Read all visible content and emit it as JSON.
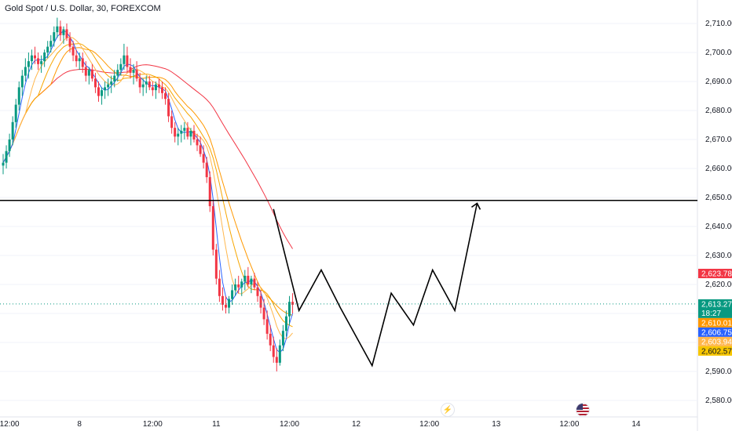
{
  "header": {
    "symbol_title": "Gold Spot / U.S. Dollar, 30, FOREXCOM"
  },
  "chart_data": {
    "type": "candlestick",
    "title": "Gold Spot / U.S. Dollar, 30, FOREXCOM",
    "y_ticks": [
      "2,710.00",
      "2,700.00",
      "2,690.00",
      "2,680.00",
      "2,670.00",
      "2,660.00",
      "2,650.00",
      "2,640.00",
      "2,630.00",
      "2,620.00",
      "2,610.00",
      "2,600.00",
      "2,590.00",
      "2,580.00"
    ],
    "y_tick_values": [
      2710,
      2700,
      2690,
      2680,
      2670,
      2660,
      2650,
      2640,
      2630,
      2620,
      2610,
      2600,
      2590,
      2580
    ],
    "x_ticks": [
      {
        "label": "12:00",
        "t": 2
      },
      {
        "label": "8",
        "t": 24
      },
      {
        "label": "12:00",
        "t": 47
      },
      {
        "label": "11",
        "t": 67
      },
      {
        "label": "12:00",
        "t": 90
      },
      {
        "label": "12",
        "t": 111
      },
      {
        "label": "12:00",
        "t": 134
      },
      {
        "label": "13",
        "t": 155
      },
      {
        "label": "12:00",
        "t": 178
      },
      {
        "label": "14",
        "t": 199
      }
    ],
    "ylim": [
      2578,
      2713
    ],
    "xlim": [
      -2,
      210
    ],
    "candles": [
      [
        2661,
        2665,
        2658,
        2662
      ],
      [
        2662,
        2668,
        2660,
        2666
      ],
      [
        2666,
        2672,
        2664,
        2670
      ],
      [
        2670,
        2678,
        2668,
        2676
      ],
      [
        2676,
        2684,
        2674,
        2682
      ],
      [
        2682,
        2690,
        2680,
        2688
      ],
      [
        2688,
        2694,
        2685,
        2692
      ],
      [
        2692,
        2698,
        2690,
        2695
      ],
      [
        2695,
        2700,
        2691,
        2697
      ],
      [
        2697,
        2701,
        2694,
        2699
      ],
      [
        2699,
        2702,
        2696,
        2698
      ],
      [
        2698,
        2700,
        2694,
        2696
      ],
      [
        2696,
        2699,
        2693,
        2697
      ],
      [
        2697,
        2701,
        2695,
        2700
      ],
      [
        2700,
        2704,
        2698,
        2702
      ],
      [
        2702,
        2706,
        2700,
        2704
      ],
      [
        2704,
        2709,
        2702,
        2707
      ],
      [
        2707,
        2712,
        2705,
        2709
      ],
      [
        2709,
        2711,
        2704,
        2706
      ],
      [
        2706,
        2709,
        2703,
        2708
      ],
      [
        2708,
        2710,
        2704,
        2705
      ],
      [
        2705,
        2707,
        2700,
        2702
      ],
      [
        2702,
        2704,
        2697,
        2699
      ],
      [
        2699,
        2701,
        2695,
        2697
      ],
      [
        2697,
        2700,
        2694,
        2698
      ],
      [
        2698,
        2700,
        2693,
        2695
      ],
      [
        2695,
        2697,
        2690,
        2692
      ],
      [
        2692,
        2695,
        2689,
        2694
      ],
      [
        2694,
        2696,
        2690,
        2691
      ],
      [
        2691,
        2693,
        2686,
        2688
      ],
      [
        2688,
        2690,
        2683,
        2685
      ],
      [
        2685,
        2688,
        2682,
        2687
      ],
      [
        2687,
        2690,
        2684,
        2688
      ],
      [
        2688,
        2691,
        2685,
        2689
      ],
      [
        2689,
        2692,
        2686,
        2690
      ],
      [
        2690,
        2694,
        2688,
        2692
      ],
      [
        2692,
        2696,
        2690,
        2694
      ],
      [
        2694,
        2698,
        2692,
        2696
      ],
      [
        2696,
        2703,
        2694,
        2699
      ],
      [
        2699,
        2702,
        2693,
        2695
      ],
      [
        2695,
        2698,
        2691,
        2693
      ],
      [
        2693,
        2696,
        2689,
        2694
      ],
      [
        2694,
        2697,
        2690,
        2691
      ],
      [
        2691,
        2693,
        2686,
        2688
      ],
      [
        2688,
        2691,
        2685,
        2689
      ],
      [
        2689,
        2692,
        2686,
        2690
      ],
      [
        2690,
        2692,
        2687,
        2688
      ],
      [
        2688,
        2690,
        2685,
        2687
      ],
      [
        2687,
        2690,
        2684,
        2689
      ],
      [
        2689,
        2691,
        2686,
        2688
      ],
      [
        2688,
        2690,
        2684,
        2686
      ],
      [
        2686,
        2688,
        2682,
        2684
      ],
      [
        2684,
        2686,
        2676,
        2678
      ],
      [
        2678,
        2680,
        2672,
        2674
      ],
      [
        2674,
        2676,
        2669,
        2671
      ],
      [
        2671,
        2674,
        2668,
        2672
      ],
      [
        2672,
        2675,
        2669,
        2673
      ],
      [
        2673,
        2676,
        2670,
        2674
      ],
      [
        2674,
        2676,
        2670,
        2671
      ],
      [
        2671,
        2674,
        2668,
        2673
      ],
      [
        2673,
        2675,
        2669,
        2670
      ],
      [
        2670,
        2672,
        2666,
        2668
      ],
      [
        2668,
        2671,
        2664,
        2665
      ],
      [
        2665,
        2668,
        2660,
        2662
      ],
      [
        2662,
        2664,
        2655,
        2657
      ],
      [
        2657,
        2659,
        2645,
        2647
      ],
      [
        2647,
        2649,
        2630,
        2632
      ],
      [
        2632,
        2634,
        2620,
        2622
      ],
      [
        2622,
        2625,
        2614,
        2616
      ],
      [
        2616,
        2619,
        2611,
        2613
      ],
      [
        2613,
        2616,
        2610,
        2612
      ],
      [
        2612,
        2616,
        2610,
        2615
      ],
      [
        2615,
        2620,
        2613,
        2618
      ],
      [
        2618,
        2622,
        2616,
        2620
      ],
      [
        2620,
        2623,
        2617,
        2619
      ],
      [
        2619,
        2622,
        2616,
        2621
      ],
      [
        2621,
        2625,
        2618,
        2623
      ],
      [
        2623,
        2626,
        2619,
        2620
      ],
      [
        2620,
        2623,
        2617,
        2622
      ],
      [
        2622,
        2624,
        2618,
        2619
      ],
      [
        2619,
        2621,
        2614,
        2616
      ],
      [
        2616,
        2618,
        2610,
        2612
      ],
      [
        2612,
        2615,
        2606,
        2608
      ],
      [
        2608,
        2611,
        2601,
        2603
      ],
      [
        2603,
        2606,
        2597,
        2599
      ],
      [
        2599,
        2602,
        2593,
        2595
      ],
      [
        2595,
        2598,
        2590,
        2593
      ],
      [
        2593,
        2601,
        2592,
        2599
      ],
      [
        2599,
        2606,
        2597,
        2604
      ],
      [
        2604,
        2611,
        2602,
        2609
      ],
      [
        2609,
        2616,
        2606,
        2614
      ],
      [
        2614,
        2617,
        2610,
        2613
      ]
    ],
    "ma_series": [
      {
        "color": "#f23645",
        "label": "2,623.78"
      },
      {
        "color": "#ff9800",
        "label": "2,603.94"
      },
      {
        "color": "#f7a600",
        "label": "2,602.57"
      },
      {
        "color": "#ffb74d",
        "label": "2,610.01"
      },
      {
        "color": "#2962ff",
        "label": "2,606.75"
      }
    ],
    "horizontal_line": {
      "value": 2649
    },
    "projection_path": [
      [
        85,
        2646
      ],
      [
        93,
        2611
      ],
      [
        100,
        2625
      ],
      [
        106,
        2612
      ],
      [
        116,
        2592
      ],
      [
        122,
        2617
      ],
      [
        129,
        2606
      ],
      [
        135,
        2625
      ],
      [
        142,
        2611
      ],
      [
        149,
        2648
      ]
    ],
    "last_price": {
      "value": 2613.27,
      "label": "2,613.27",
      "countdown": "18:27"
    },
    "price_badges": [
      {
        "label": "2,623.78",
        "value": 2623.78,
        "color": "#f23645"
      },
      {
        "label": "2,613.27",
        "value": 2613.27,
        "color": "#089981"
      },
      {
        "label": "2,610.01",
        "value": 2610.01,
        "color": "#ff9800"
      },
      {
        "label": "2,606.75",
        "value": 2606.75,
        "color": "#2962ff"
      },
      {
        "label": "2,603.94",
        "value": 2603.94,
        "color": "#ffb74d"
      },
      {
        "label": "2,602.57",
        "value": 2602.57,
        "color": "#f7c600"
      }
    ],
    "colors": {
      "up": "#089981",
      "down": "#f23645",
      "grid": "#f0f3fa"
    },
    "icons": [
      "flash-icon",
      "us-flag-icon"
    ]
  }
}
